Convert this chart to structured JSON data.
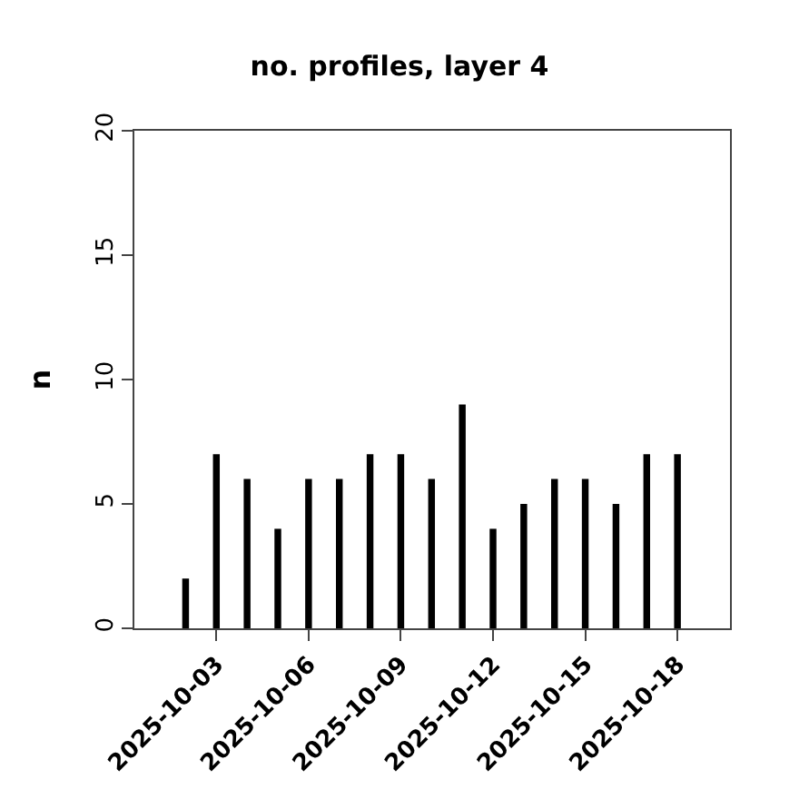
{
  "chart_data": {
    "type": "bar",
    "title": "no. profiles, layer 4",
    "ylabel": "n",
    "x": [
      "2025-10-02",
      "2025-10-03",
      "2025-10-04",
      "2025-10-05",
      "2025-10-06",
      "2025-10-07",
      "2025-10-08",
      "2025-10-09",
      "2025-10-10",
      "2025-10-11",
      "2025-10-12",
      "2025-10-13",
      "2025-10-14",
      "2025-10-15",
      "2025-10-16",
      "2025-10-17",
      "2025-10-18"
    ],
    "values": [
      2,
      7,
      6,
      4,
      6,
      6,
      7,
      7,
      6,
      9,
      4,
      5,
      6,
      6,
      5,
      7,
      7
    ],
    "color": "#000000",
    "xlim": [
      "2025-09-30T08:00",
      "2025-10-19T17:00"
    ],
    "xticks": [
      {
        "value": "2025-10-03",
        "label": "2025-10-03"
      },
      {
        "value": "2025-10-06",
        "label": "2025-10-06"
      },
      {
        "value": "2025-10-09",
        "label": "2025-10-09"
      },
      {
        "value": "2025-10-12",
        "label": "2025-10-12"
      },
      {
        "value": "2025-10-15",
        "label": "2025-10-15"
      },
      {
        "value": "2025-10-18",
        "label": "2025-10-18"
      }
    ],
    "ylim": [
      0,
      20
    ],
    "yticks": [
      0,
      5,
      10,
      15,
      20
    ]
  }
}
